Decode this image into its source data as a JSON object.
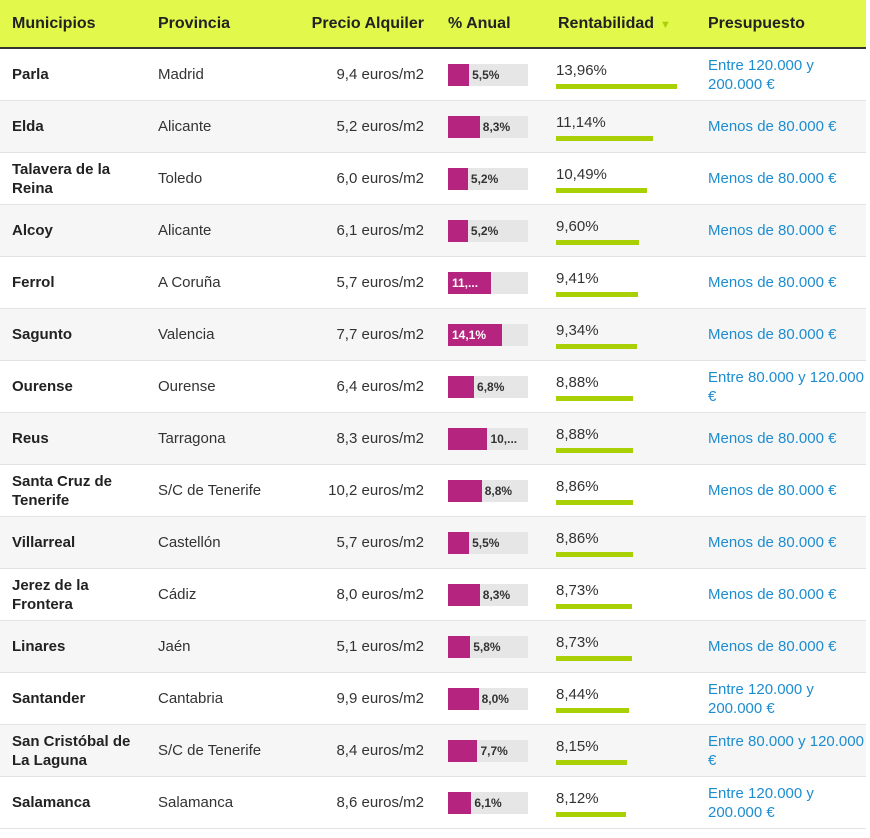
{
  "table": {
    "columns": [
      "Municipios",
      "Provincia",
      "Precio Alquiler",
      "% Anual",
      "Rentabilidad",
      "Presupuesto"
    ],
    "rows": [
      [
        "Parla",
        "Madrid",
        "9,4 euros/m2",
        {
          "value": 5.5,
          "label": "5,5%"
        },
        {
          "value": 13.96,
          "label": "13,96%"
        },
        "Entre 120.000 y 200.000 €"
      ],
      [
        "Elda",
        "Alicante",
        "5,2 euros/m2",
        {
          "value": 8.3,
          "label": "8,3%"
        },
        {
          "value": 11.14,
          "label": "11,14%"
        },
        "Menos de 80.000 €"
      ],
      [
        "Talavera de la Reina",
        "Toledo",
        "6,0 euros/m2",
        {
          "value": 5.2,
          "label": "5,2%"
        },
        {
          "value": 10.49,
          "label": "10,49%"
        },
        "Menos de 80.000 €"
      ],
      [
        "Alcoy",
        "Alicante",
        "6,1 euros/m2",
        {
          "value": 5.2,
          "label": "5,2%"
        },
        {
          "value": 9.6,
          "label": "9,60%"
        },
        "Menos de 80.000 €"
      ],
      [
        "Ferrol",
        "A Coruña",
        "5,7 euros/m2",
        {
          "value": 11.3,
          "label": "11,..."
        },
        {
          "value": 9.41,
          "label": "9,41%"
        },
        "Menos de 80.000 €"
      ],
      [
        "Sagunto",
        "Valencia",
        "7,7 euros/m2",
        {
          "value": 14.1,
          "label": "14,1%"
        },
        {
          "value": 9.34,
          "label": "9,34%"
        },
        "Menos de 80.000 €"
      ],
      [
        "Ourense",
        "Ourense",
        "6,4 euros/m2",
        {
          "value": 6.8,
          "label": "6,8%"
        },
        {
          "value": 8.88,
          "label": "8,88%"
        },
        "Entre 80.000 y 120.000 €"
      ],
      [
        "Reus",
        "Tarragona",
        "8,3 euros/m2",
        {
          "value": 10.3,
          "label": "10,..."
        },
        {
          "value": 8.88,
          "label": "8,88%"
        },
        "Menos de 80.000 €"
      ],
      [
        "Santa Cruz de Tenerife",
        "S/C de Tenerife",
        "10,2 euros/m2",
        {
          "value": 8.8,
          "label": "8,8%"
        },
        {
          "value": 8.86,
          "label": "8,86%"
        },
        "Menos de 80.000 €"
      ],
      [
        "Villarreal",
        "Castellón",
        "5,7 euros/m2",
        {
          "value": 5.5,
          "label": "5,5%"
        },
        {
          "value": 8.86,
          "label": "8,86%"
        },
        "Menos de 80.000 €"
      ],
      [
        "Jerez de la Frontera",
        "Cádiz",
        "8,0 euros/m2",
        {
          "value": 8.3,
          "label": "8,3%"
        },
        {
          "value": 8.73,
          "label": "8,73%"
        },
        "Menos de 80.000 €"
      ],
      [
        "Linares",
        "Jaén",
        "5,1 euros/m2",
        {
          "value": 5.8,
          "label": "5,8%"
        },
        {
          "value": 8.73,
          "label": "8,73%"
        },
        "Menos de 80.000 €"
      ],
      [
        "Santander",
        "Cantabria",
        "9,9 euros/m2",
        {
          "value": 8.0,
          "label": "8,0%"
        },
        {
          "value": 8.44,
          "label": "8,44%"
        },
        "Entre 120.000 y 200.000 €"
      ],
      [
        "San Cristóbal de La Laguna",
        "S/C de Tenerife",
        "8,4 euros/m2",
        {
          "value": 7.7,
          "label": "7,7%"
        },
        {
          "value": 8.15,
          "label": "8,15%"
        },
        "Entre 80.000 y 120.000 €"
      ],
      [
        "Salamanca",
        "Salamanca",
        "8,6 euros/m2",
        {
          "value": 6.1,
          "label": "6,1%"
        },
        {
          "value": 8.12,
          "label": "8,12%"
        },
        "Entre 120.000 y 200.000 €"
      ]
    ]
  }
}
